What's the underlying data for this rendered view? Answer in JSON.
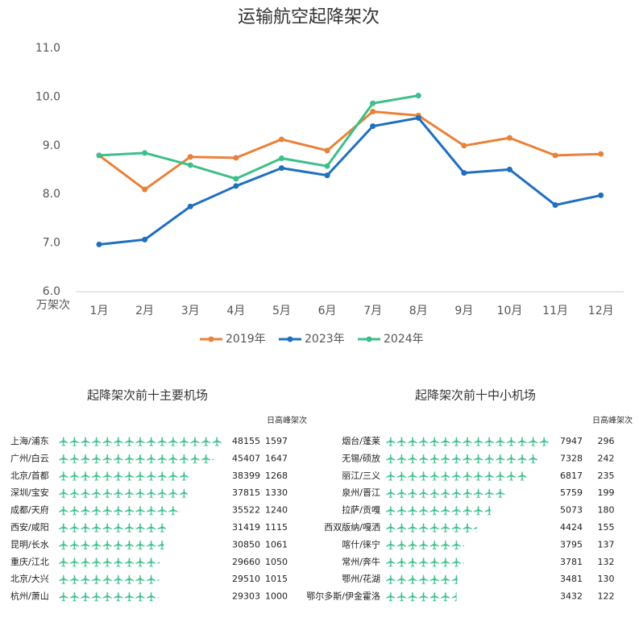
{
  "chart_data": [
    {
      "type": "line",
      "title": "运输航空起降架次",
      "y_label": "万架次",
      "categories": [
        "1月",
        "2月",
        "3月",
        "4月",
        "5月",
        "6月",
        "7月",
        "8月",
        "9月",
        "10月",
        "11月",
        "12月"
      ],
      "series": [
        {
          "name": "2019年",
          "color": "#e8823a",
          "values": [
            8.8,
            8.1,
            8.77,
            8.75,
            9.13,
            8.9,
            9.7,
            9.62,
            9.0,
            9.16,
            8.8,
            8.83
          ]
        },
        {
          "name": "2023年",
          "color": "#1f6fbf",
          "values": [
            6.97,
            7.07,
            7.75,
            8.17,
            8.54,
            8.39,
            9.4,
            9.57,
            8.44,
            8.51,
            7.78,
            7.98
          ]
        },
        {
          "name": "2024年",
          "color": "#3dbf8a",
          "values": [
            8.8,
            8.85,
            8.6,
            8.32,
            8.74,
            8.58,
            9.87,
            10.03,
            null,
            null,
            null,
            null
          ]
        }
      ],
      "ylim": [
        6,
        11
      ],
      "yticks": [
        {
          "value": 6,
          "label": "6.0"
        },
        {
          "value": 7,
          "label": "7.0"
        },
        {
          "value": 8,
          "label": "8.0"
        },
        {
          "value": 9,
          "label": "9.0"
        },
        {
          "value": 10,
          "label": "10.0"
        },
        {
          "value": 11,
          "label": "11.0"
        }
      ],
      "grid": false,
      "legend": "bottom"
    },
    {
      "type": "pictogram",
      "title": "起降架次前十主要机场",
      "peak_label": "日高峰架次",
      "color": "#3dbf8a",
      "categories": [
        "上海/浦东",
        "广州/白云",
        "北京/首都",
        "深圳/宝安",
        "成都/天府",
        "西安/咸阳",
        "昆明/长水",
        "重庆/江北",
        "北京/大兴",
        "杭州/萧山"
      ],
      "values": [
        48155,
        45407,
        38399,
        37815,
        35522,
        31419,
        30850,
        29660,
        29510,
        29303
      ],
      "peak_values": [
        1597,
        1647,
        1268,
        1330,
        1240,
        1115,
        1061,
        1050,
        1015,
        1000
      ]
    },
    {
      "type": "pictogram",
      "title": "起降架次前十中小机场",
      "peak_label": "日高峰架次",
      "color": "#3dbf8a",
      "categories": [
        "烟台/蓬莱",
        "无锡/硕放",
        "丽江/三义",
        "泉州/晋江",
        "拉萨/贡嘎",
        "西双版纳/嘎洒",
        "喀什/徕宁",
        "常州/奔牛",
        "鄂州/花湖",
        "鄂尔多斯/伊金霍洛"
      ],
      "values": [
        7947,
        7328,
        6817,
        5759,
        5073,
        4424,
        3795,
        3781,
        3481,
        3432
      ],
      "peak_values": [
        296,
        242,
        235,
        199,
        180,
        155,
        137,
        132,
        130,
        122
      ]
    }
  ]
}
